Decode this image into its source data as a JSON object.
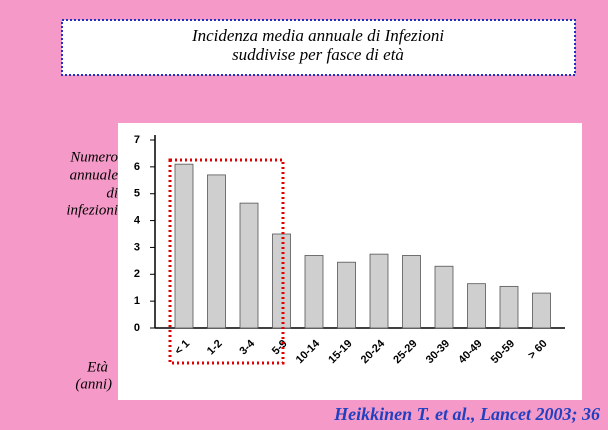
{
  "chart_data": {
    "type": "bar",
    "title": [
      "Incidenza media annuale di Infezioni",
      "suddivise per fasce di età"
    ],
    "y_label": [
      "Numero",
      "annuale",
      "di",
      "infezioni"
    ],
    "x_label": [
      "Età",
      "(anni)"
    ],
    "source": "Heikkinen T. et al., Lancet 2003; 36",
    "categories": [
      "< 1",
      "1-2",
      "3-4",
      "5-9",
      "10-14",
      "15-19",
      "20-24",
      "25-29",
      "30-39",
      "40-49",
      "50-59",
      "> 60"
    ],
    "values": [
      6.1,
      5.7,
      4.65,
      3.5,
      2.7,
      2.45,
      2.75,
      2.7,
      2.3,
      1.65,
      1.55,
      1.3
    ],
    "color": "#cfcfcf",
    "ylim": [
      0,
      7
    ],
    "yticks": [
      0,
      1,
      2,
      3,
      4,
      5,
      6,
      7
    ],
    "grid": false
  }
}
